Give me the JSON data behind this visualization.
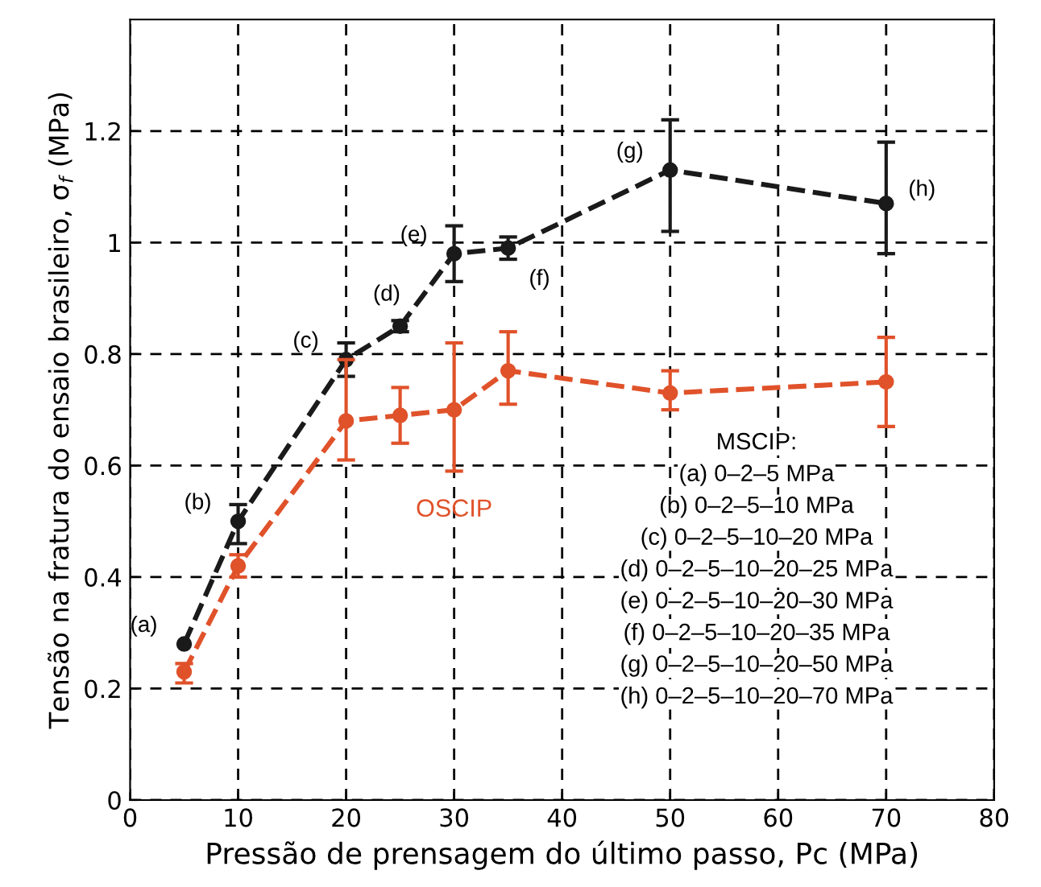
{
  "chart_data": {
    "type": "line",
    "xlabel": "Pressão de prensagem do último passo, Pc (MPa)",
    "ylabel": "Tensão na fratura do ensaio brasileiro, σ$_{f}$ (MPa)",
    "x": [
      5,
      10,
      20,
      25,
      30,
      35,
      50,
      70
    ],
    "series": [
      {
        "color": "#1a1a1a",
        "values": [
          0.28,
          0.5,
          0.79,
          0.85,
          0.98,
          0.99,
          1.13,
          1.07
        ],
        "errors": [
          null,
          [
            0.46,
            0.53
          ],
          [
            0.76,
            0.82
          ],
          [
            0.84,
            0.86
          ],
          [
            0.93,
            1.03
          ],
          [
            0.97,
            1.01
          ],
          [
            1.02,
            1.22
          ],
          [
            0.98,
            1.18
          ]
        ]
      },
      {
        "name": "OSCIP",
        "color": "#e0522a",
        "values": [
          0.23,
          0.42,
          0.68,
          0.69,
          0.7,
          0.77,
          0.73,
          0.75
        ],
        "errors": [
          [
            0.21,
            0.245
          ],
          [
            0.4,
            0.44
          ],
          [
            0.61,
            0.79
          ],
          [
            0.64,
            0.74
          ],
          [
            0.59,
            0.82
          ],
          [
            0.71,
            0.84
          ],
          [
            0.7,
            0.77
          ],
          [
            0.67,
            0.83
          ]
        ]
      }
    ],
    "xlim": [
      0,
      80
    ],
    "xticks": [
      0,
      10,
      20,
      30,
      40,
      50,
      60,
      70,
      80
    ],
    "ylim": [
      0,
      1.4
    ],
    "yticks": [
      0,
      0.2,
      0.4,
      0.6,
      0.8,
      1,
      1.2
    ],
    "grid": true,
    "marker": "circle",
    "line_style": "dashed",
    "annotations": [
      {
        "text": "(a)",
        "x": 5,
        "y": 0.28
      },
      {
        "text": "(b)",
        "x": 10,
        "y": 0.5
      },
      {
        "text": "(c)",
        "x": 20,
        "y": 0.79
      },
      {
        "text": "(d)",
        "x": 25,
        "y": 0.85
      },
      {
        "text": "(e)",
        "x": 30,
        "y": 0.98
      },
      {
        "text": "(f)",
        "x": 35,
        "y": 0.99
      },
      {
        "text": "(g)",
        "x": 50,
        "y": 1.13
      },
      {
        "text": "(h)",
        "x": 70,
        "y": 1.07
      },
      "MSCIP:",
      "(a) 0–2–5 MPa",
      "(b) 0–2–5–10 MPa",
      "(c) 0–2–5–10–20 MPa",
      "(d) 0–2–5–10–20–25 MPa",
      "(e) 0–2–5–10–20–30 MPa",
      "(f) 0–2–5–10–20–35 MPa",
      "(g) 0–2–5–10–20–50 MPa",
      "(h) 0–2–5–10–20–70 MPa"
    ]
  }
}
